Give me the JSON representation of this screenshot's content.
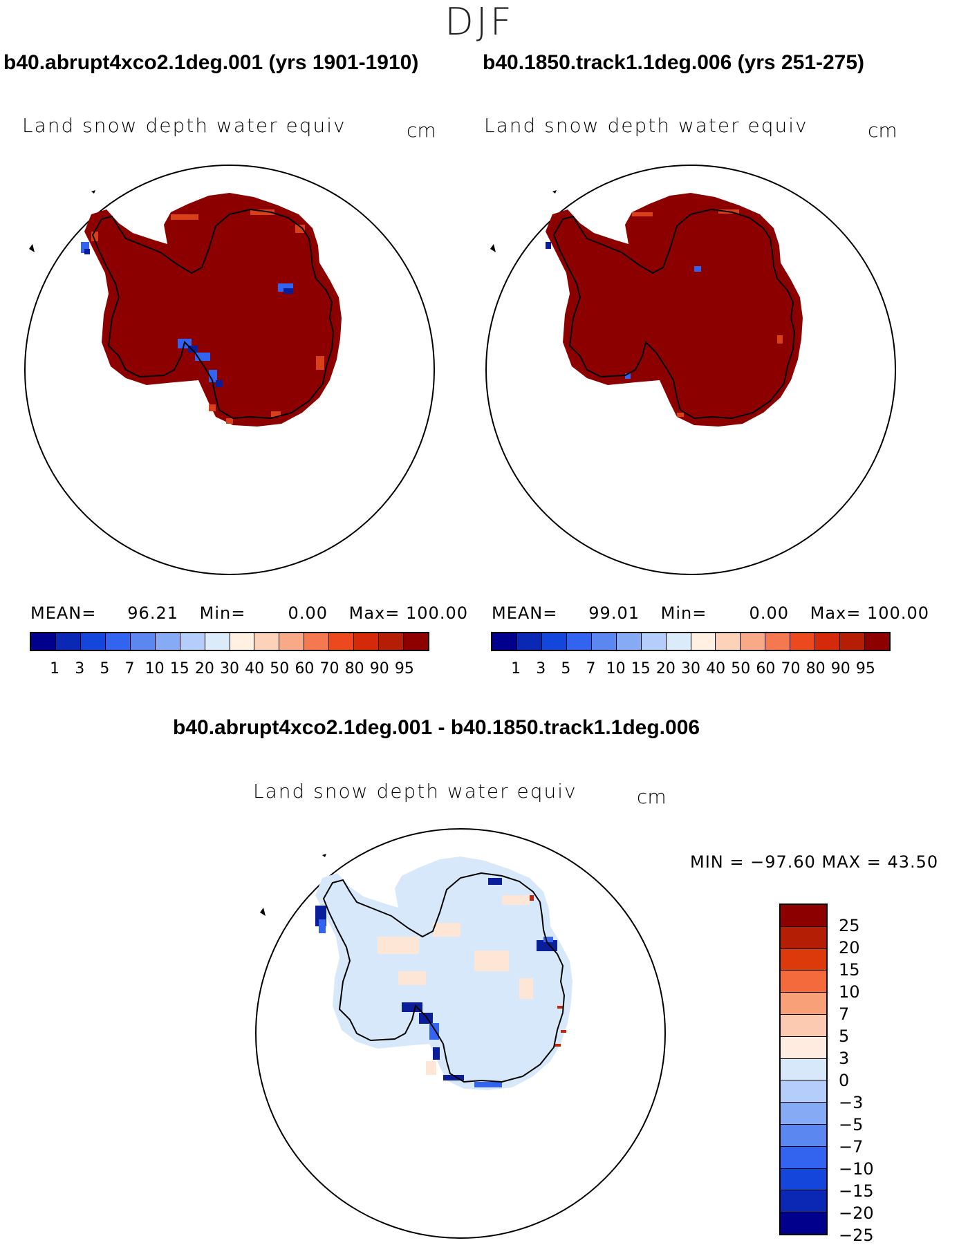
{
  "season": "DJF",
  "panels": [
    {
      "case_title": "b40.abrupt4xco2.1deg.001 (yrs 1901-1910)",
      "variable": "Land snow depth water equiv",
      "units": "cm",
      "mean_label": "MEAN=",
      "mean_value": "96.21",
      "min_label": "Min=",
      "min_value": "0.00",
      "max_label": "Max=",
      "max_value": "100.00"
    },
    {
      "case_title": "b40.1850.track1.1deg.006 (yrs 251-275)",
      "variable": "Land snow depth water equiv",
      "units": "cm",
      "mean_label": "MEAN=",
      "mean_value": "99.01",
      "min_label": "Min=",
      "min_value": "0.00",
      "max_label": "Max=",
      "max_value": "100.00"
    }
  ],
  "diff_panel": {
    "title": "b40.abrupt4xco2.1deg.001 - b40.1850.track1.1deg.006",
    "variable": "Land snow depth water equiv",
    "units": "cm",
    "minmax_text": "MIN = −97.60 MAX =   43.50"
  },
  "colorbar_abs": {
    "colors": [
      "#00008c",
      "#0a28b4",
      "#1446dc",
      "#3264f0",
      "#5a87f0",
      "#87aaf5",
      "#b4cdfa",
      "#dcebfa",
      "#fff0e1",
      "#fcd2b9",
      "#f8aa87",
      "#f47850",
      "#ec4a1e",
      "#d42a0a",
      "#b41e05",
      "#8c0000"
    ],
    "ticks": [
      "1",
      "3",
      "5",
      "7",
      "10",
      "15",
      "20",
      "30",
      "40",
      "50",
      "60",
      "70",
      "80",
      "90",
      "95"
    ]
  },
  "colorbar_diff": {
    "colors": [
      "#8c0000",
      "#b41e05",
      "#dc3a0a",
      "#f46a3c",
      "#f8a078",
      "#fccab0",
      "#ffece0",
      "#d7e8fa",
      "#b4cdfa",
      "#87aaf5",
      "#5a87f0",
      "#3264f0",
      "#1446dc",
      "#0a28b4",
      "#00008c"
    ],
    "ticks": [
      "25",
      "20",
      "15",
      "10",
      "7",
      "5",
      "3",
      "0",
      "−3",
      "−5",
      "−7",
      "−10",
      "−15",
      "−20",
      "−25"
    ]
  },
  "map_colors": {
    "ice_abs": "#8c0000",
    "ice_edge": "#d8401a",
    "ice_diff": "#d7e8fa",
    "diff_pos": "#fde6d6",
    "blue_strong": "#0a1e9a",
    "blue_mid": "#3264f0"
  }
}
